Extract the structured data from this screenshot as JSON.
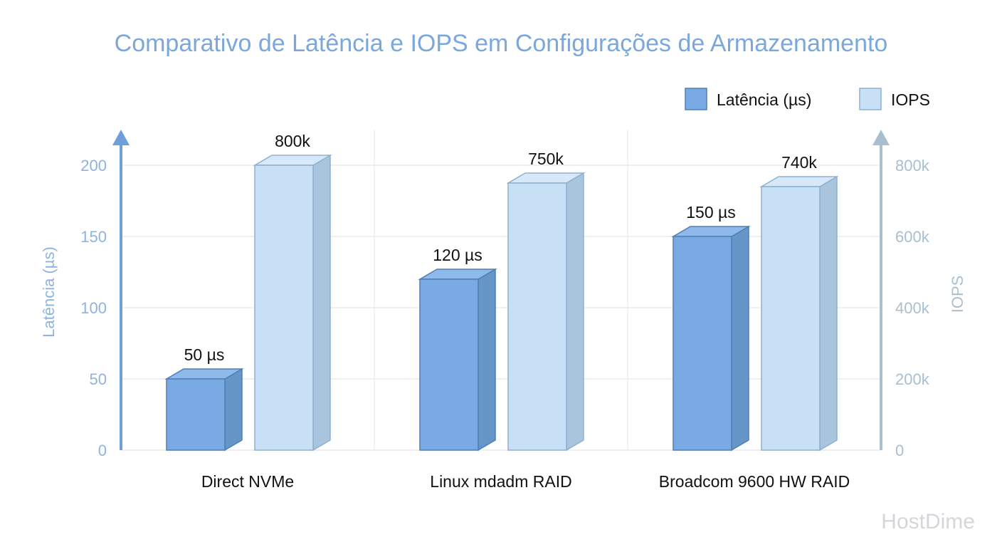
{
  "chart_data": {
    "type": "bar",
    "title": "Comparativo de Latência e IOPS em Configurações de Armazenamento",
    "categories": [
      "Direct NVMe",
      "Linux mdadm RAID",
      "Broadcom 9600 HW RAID"
    ],
    "series": [
      {
        "name": "Latência (µs)",
        "axis": "left",
        "values": [
          50,
          120,
          150
        ],
        "labels": [
          "50 µs",
          "120 µs",
          "150 µs"
        ],
        "color": "#7aaae3"
      },
      {
        "name": "IOPS",
        "axis": "right",
        "values": [
          800000,
          750000,
          740000
        ],
        "labels": [
          "800k",
          "750k",
          "740k"
        ],
        "color": "#c8e0f6"
      }
    ],
    "ylabel_left": "Latência (µs)",
    "ylabel_right": "IOPS",
    "ylim_left": [
      0,
      200
    ],
    "ylim_right": [
      0,
      800000
    ],
    "yticks_left": [
      "0",
      "50",
      "100",
      "150",
      "200"
    ],
    "yticks_right": [
      "0",
      "200k",
      "400k",
      "600k",
      "800k"
    ],
    "grid": true,
    "legend_position": "top-right",
    "style": "3d-bars",
    "colors": {
      "title": "#7ba7dc",
      "left_axis": "#6f9fd8",
      "right_axis": "#a9bfd0"
    }
  },
  "watermark": "HostDime"
}
